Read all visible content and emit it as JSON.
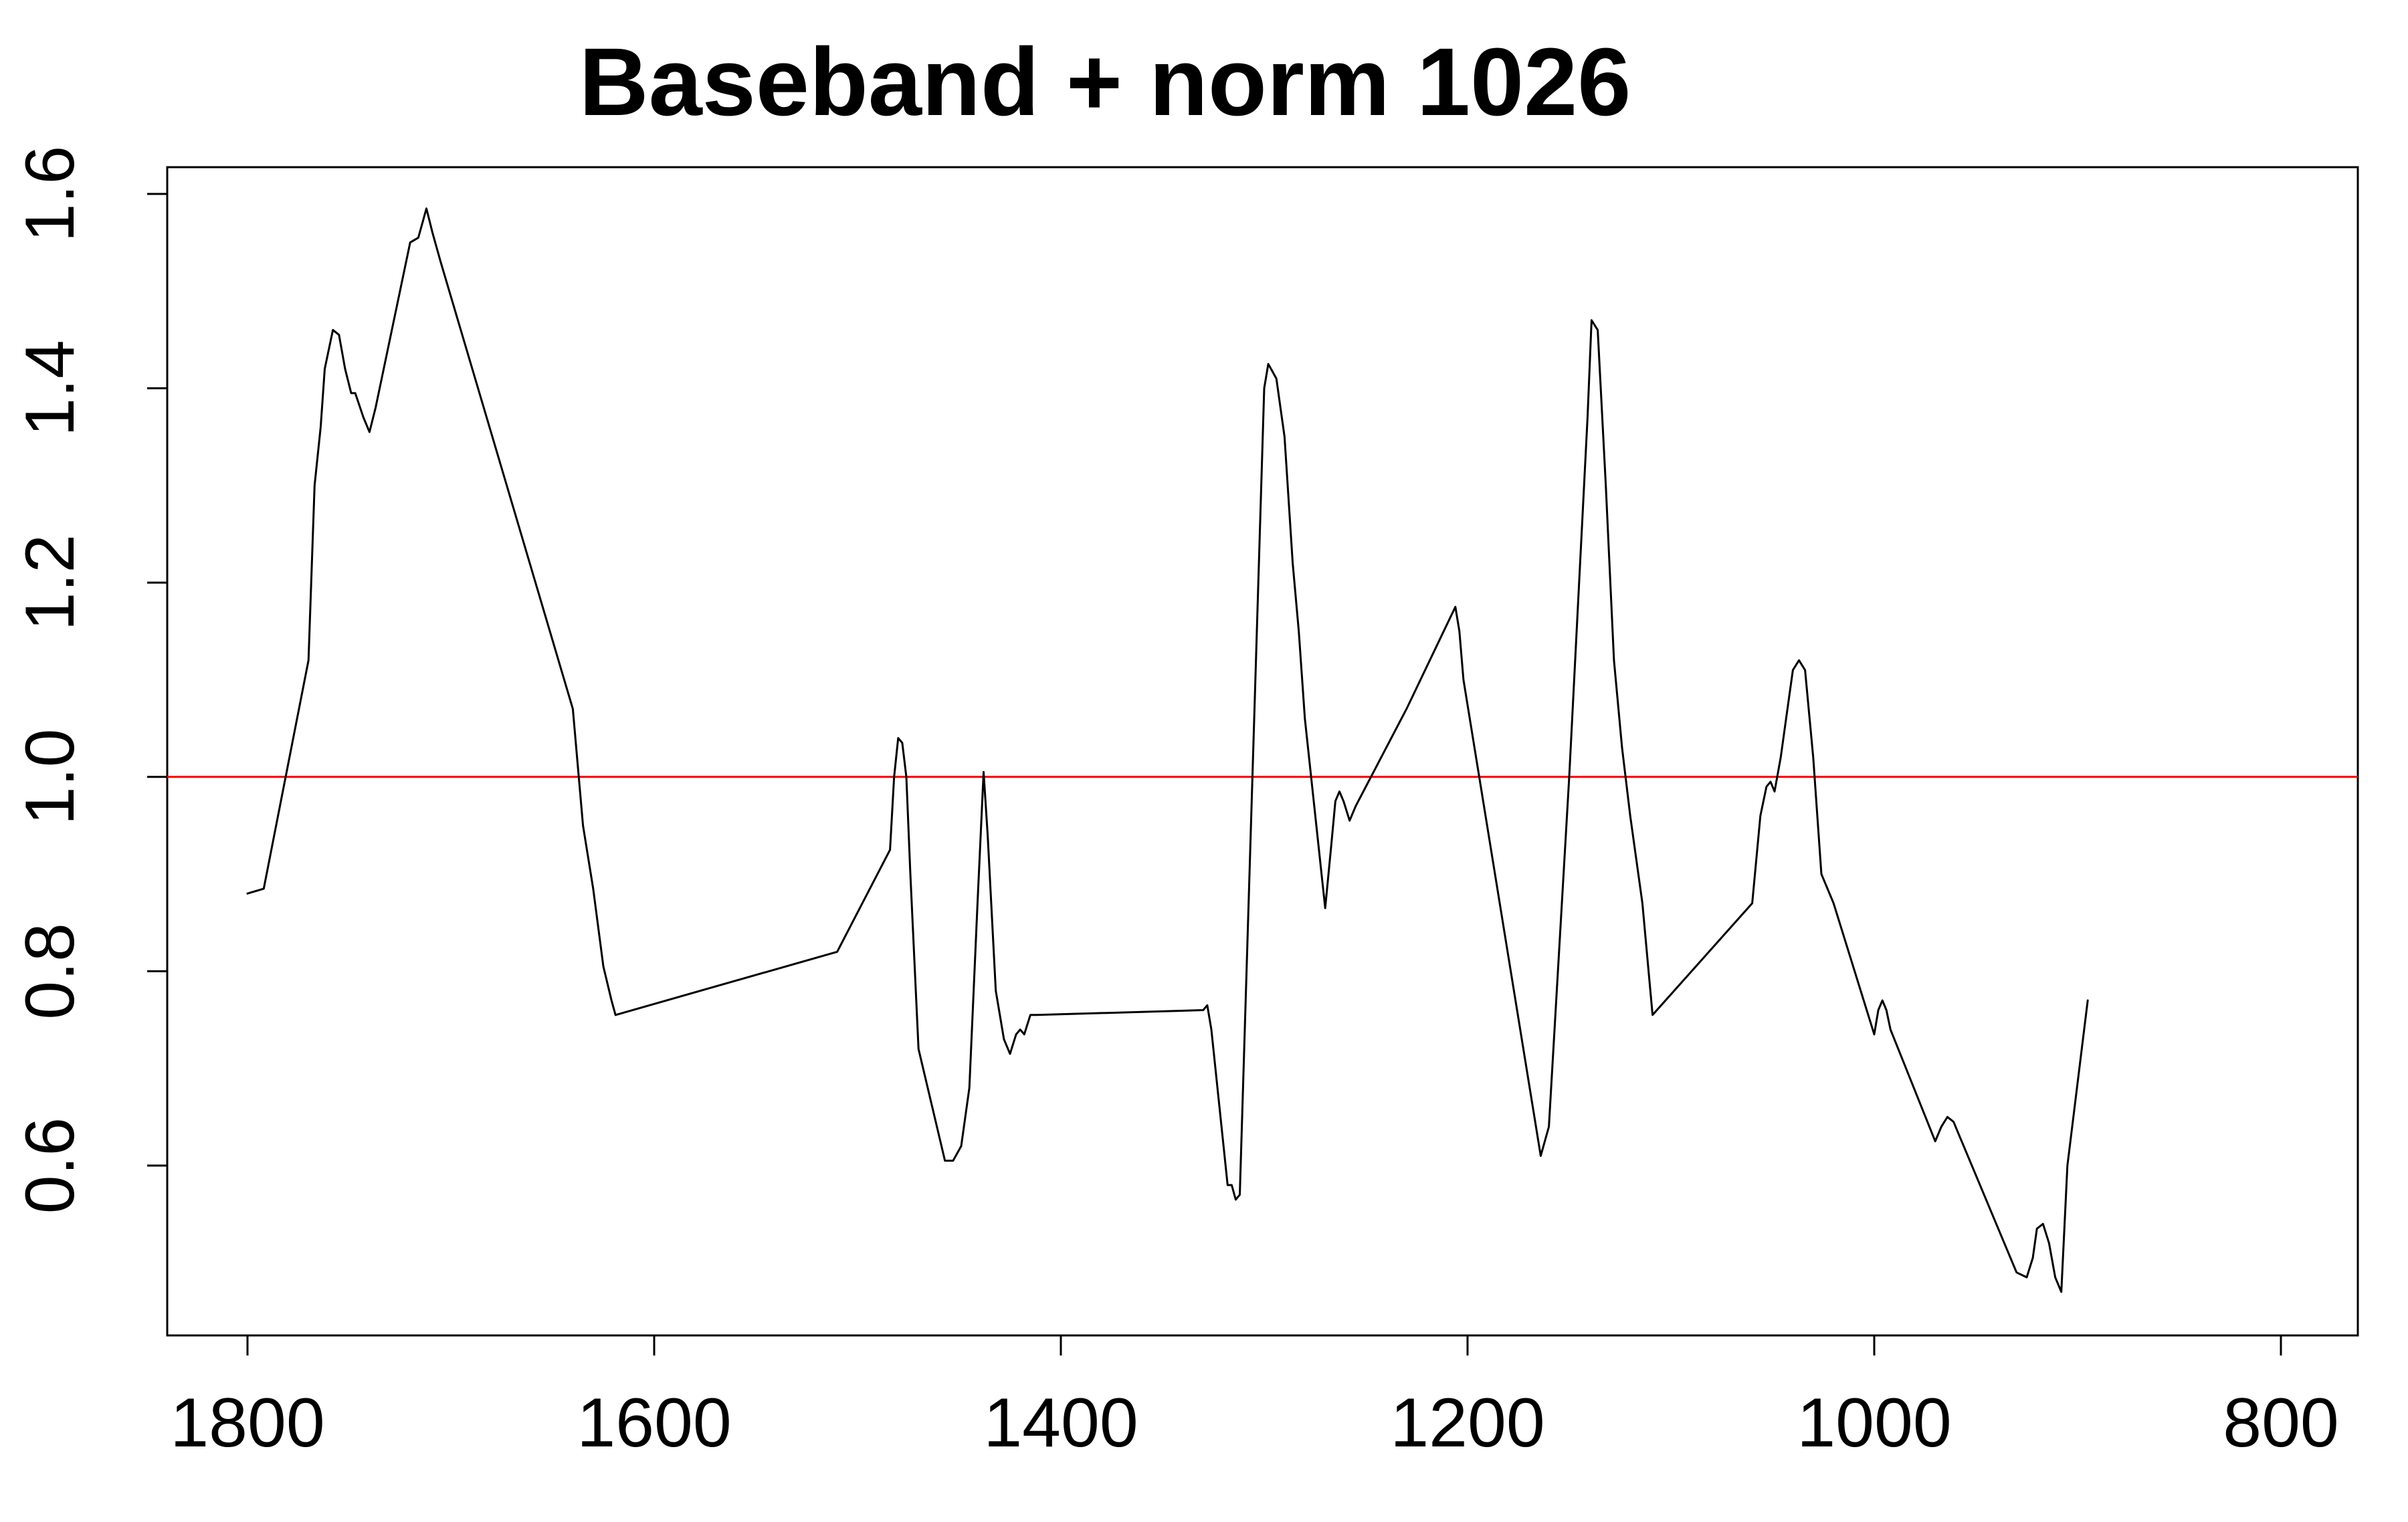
{
  "chart_data": {
    "type": "line",
    "title": "Baseband + norm 1026",
    "xlabel": "",
    "ylabel": "",
    "xlim": [
      1800,
      800
    ],
    "x_reversed": true,
    "ylim": [
      0.47,
      1.63
    ],
    "x_ticks": [
      1800,
      1600,
      1400,
      1200,
      1000,
      800
    ],
    "x_tick_labels": [
      "1800",
      "1600",
      "1400",
      "1200",
      "1000",
      "800"
    ],
    "y_ticks": [
      0.6,
      0.8,
      1.0,
      1.2,
      1.4,
      1.6
    ],
    "y_tick_labels": [
      "0.6",
      "0.8",
      "1.0",
      "1.2",
      "1.4",
      "1.6"
    ],
    "grid": false,
    "legend": "none",
    "reference_line": {
      "y": 1.0,
      "color": "#ff0000"
    },
    "series": [
      {
        "color": "#000000",
        "x": [
          1800,
          1792,
          1770,
          1767,
          1764,
          1762,
          1758,
          1755,
          1752,
          1749,
          1747,
          1743,
          1740,
          1737,
          1720,
          1716,
          1712,
          1709,
          1705,
          1640,
          1635,
          1630,
          1625,
          1621,
          1619,
          1510,
          1484,
          1482,
          1480,
          1478,
          1476,
          1474,
          1470,
          1457,
          1453,
          1449,
          1445,
          1441,
          1438,
          1436,
          1432,
          1428,
          1425,
          1422,
          1420,
          1418,
          1415,
          1412,
          1330,
          1328,
          1326,
          1318,
          1316,
          1314,
          1312,
          1300,
          1298,
          1294,
          1290,
          1286,
          1283,
          1280,
          1270,
          1267,
          1265,
          1263,
          1261,
          1258,
          1255,
          1230,
          1206,
          1204,
          1202,
          1164,
          1160,
          1150,
          1141,
          1139,
          1136,
          1132,
          1128,
          1124,
          1120,
          1114,
          1109,
          1060,
          1056,
          1053,
          1051,
          1049,
          1046,
          1042,
          1040,
          1037,
          1034,
          1030,
          1026,
          1020,
          1000,
          998,
          996,
          994,
          992,
          970,
          967,
          964,
          961,
          958,
          956,
          930,
          925,
          922,
          920,
          917,
          914,
          911,
          908,
          905,
          895
        ],
        "y": [
          0.88,
          0.885,
          1.12,
          1.3,
          1.36,
          1.42,
          1.46,
          1.455,
          1.42,
          1.395,
          1.395,
          1.37,
          1.355,
          1.38,
          1.55,
          1.555,
          1.585,
          1.56,
          1.53,
          1.07,
          0.95,
          0.885,
          0.805,
          0.77,
          0.755,
          0.82,
          0.925,
          1.0,
          1.04,
          1.035,
          1.0,
          0.9,
          0.72,
          0.605,
          0.605,
          0.62,
          0.68,
          0.87,
          1.005,
          0.94,
          0.78,
          0.73,
          0.715,
          0.735,
          0.74,
          0.735,
          0.755,
          0.755,
          0.76,
          0.765,
          0.74,
          0.58,
          0.58,
          0.565,
          0.57,
          1.4,
          1.425,
          1.41,
          1.35,
          1.22,
          1.15,
          1.06,
          0.865,
          0.93,
          0.975,
          0.985,
          0.975,
          0.955,
          0.97,
          1.07,
          1.175,
          1.15,
          1.1,
          0.61,
          0.64,
          1.0,
          1.37,
          1.47,
          1.46,
          1.3,
          1.12,
          1.03,
          0.96,
          0.87,
          0.755,
          0.87,
          0.96,
          0.99,
          0.995,
          0.985,
          1.02,
          1.08,
          1.11,
          1.12,
          1.11,
          1.02,
          0.9,
          0.87,
          0.735,
          0.76,
          0.77,
          0.76,
          0.74,
          0.625,
          0.64,
          0.65,
          0.645,
          0.63,
          0.62,
          0.49,
          0.485,
          0.505,
          0.535,
          0.54,
          0.52,
          0.485,
          0.47,
          0.6,
          0.77
        ]
      }
    ]
  }
}
